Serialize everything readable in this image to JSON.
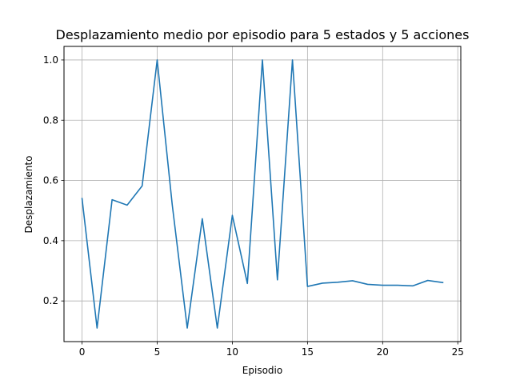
{
  "chart_data": {
    "type": "line",
    "title": "Desplazamiento medio por episodio para 5 estados y 5 acciones",
    "xlabel": "Episodio",
    "ylabel": "Desplazamiento",
    "xlim": [
      -1.2,
      25.2
    ],
    "ylim": [
      0.065,
      1.045
    ],
    "x_ticks": [
      0,
      5,
      10,
      15,
      20,
      25
    ],
    "y_ticks": [
      0.2,
      0.4,
      0.6,
      0.8,
      1.0
    ],
    "x_tick_labels": [
      "0",
      "5",
      "10",
      "15",
      "20",
      "25"
    ],
    "y_tick_labels": [
      "0.2",
      "0.4",
      "0.6",
      "0.8",
      "1.0"
    ],
    "grid": true,
    "series": [
      {
        "color": "#1f77b4",
        "x": [
          0,
          1,
          2,
          3,
          4,
          5,
          6,
          7,
          8,
          9,
          10,
          11,
          12,
          13,
          14,
          15,
          16,
          17,
          18,
          19,
          20,
          21,
          22,
          23,
          24
        ],
        "y": [
          0.54,
          0.11,
          0.536,
          0.518,
          0.582,
          1.0,
          0.52,
          0.11,
          0.473,
          0.11,
          0.484,
          0.258,
          1.0,
          0.27,
          1.0,
          0.248,
          0.259,
          0.262,
          0.267,
          0.255,
          0.252,
          0.252,
          0.25,
          0.268,
          0.261
        ]
      }
    ]
  }
}
